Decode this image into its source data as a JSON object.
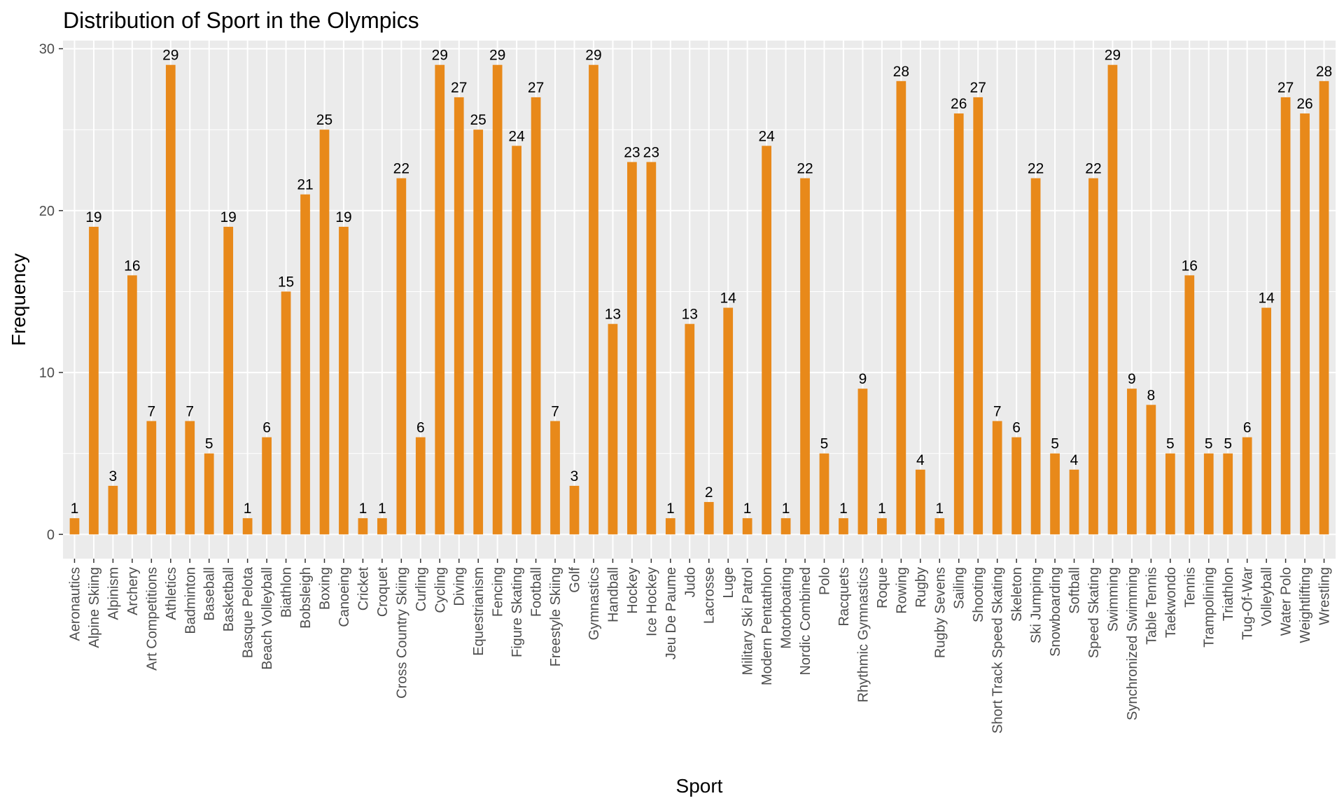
{
  "chart_data": {
    "type": "bar",
    "title": "Distribution of Sport in the Olympics",
    "xlabel": "Sport",
    "ylabel": "Frequency",
    "ylim": [
      -1.5,
      30.5
    ],
    "yticks": [
      0,
      10,
      20,
      30
    ],
    "grid": true,
    "bar_color": "#E8891A",
    "panel_color": "#EBEBEB",
    "gridline_color": "#FFFFFF",
    "categories": [
      "Aeronautics",
      "Alpine Skiing",
      "Alpinism",
      "Archery",
      "Art Competitions",
      "Athletics",
      "Badminton",
      "Baseball",
      "Basketball",
      "Basque Pelota",
      "Beach Volleyball",
      "Biathlon",
      "Bobsleigh",
      "Boxing",
      "Canoeing",
      "Cricket",
      "Croquet",
      "Cross Country Skiing",
      "Curling",
      "Cycling",
      "Diving",
      "Equestrianism",
      "Fencing",
      "Figure Skating",
      "Football",
      "Freestyle Skiing",
      "Golf",
      "Gymnastics",
      "Handball",
      "Hockey",
      "Ice Hockey",
      "Jeu De Paume",
      "Judo",
      "Lacrosse",
      "Luge",
      "Military Ski Patrol",
      "Modern Pentathlon",
      "Motorboating",
      "Nordic Combined",
      "Polo",
      "Racquets",
      "Rhythmic Gymnastics",
      "Roque",
      "Rowing",
      "Rugby",
      "Rugby Sevens",
      "Sailing",
      "Shooting",
      "Short Track Speed Skating",
      "Skeleton",
      "Ski Jumping",
      "Snowboarding",
      "Softball",
      "Speed Skating",
      "Swimming",
      "Synchronized Swimming",
      "Table Tennis",
      "Taekwondo",
      "Tennis",
      "Trampolining",
      "Triathlon",
      "Tug-Of-War",
      "Volleyball",
      "Water Polo",
      "Weightlifting",
      "Wrestling"
    ],
    "values": [
      1,
      19,
      3,
      16,
      7,
      29,
      7,
      5,
      19,
      1,
      6,
      15,
      21,
      25,
      19,
      1,
      1,
      22,
      6,
      29,
      27,
      25,
      29,
      24,
      27,
      7,
      3,
      29,
      13,
      23,
      23,
      1,
      13,
      2,
      14,
      1,
      24,
      1,
      22,
      5,
      1,
      9,
      1,
      28,
      4,
      1,
      26,
      27,
      7,
      6,
      22,
      5,
      4,
      22,
      29,
      9,
      8,
      5,
      16,
      5,
      5,
      6,
      14,
      27,
      26,
      28
    ]
  }
}
